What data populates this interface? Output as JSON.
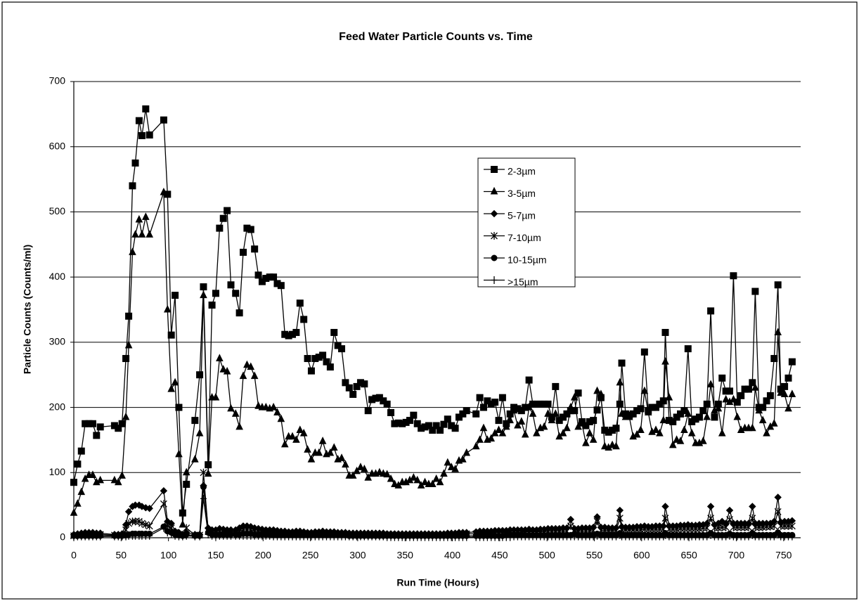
{
  "chart_data": {
    "type": "line",
    "title": "Feed Water Particle Counts vs. Time",
    "x_label": "Run Time (Hours)",
    "y_label": "Particle Counts (Counts/ml)",
    "xlim": [
      0,
      768
    ],
    "xticks": [
      0,
      50,
      100,
      150,
      200,
      250,
      300,
      350,
      400,
      450,
      500,
      550,
      600,
      650,
      700,
      750
    ],
    "ylim": [
      0,
      700
    ],
    "yticks": [
      0,
      100,
      200,
      300,
      400,
      500,
      600,
      700
    ],
    "grid": true,
    "x": [
      0,
      4,
      8,
      12,
      16,
      20,
      24,
      28,
      43,
      47,
      51,
      55,
      58,
      62,
      65,
      69,
      72,
      76,
      80,
      95,
      99,
      103,
      107,
      111,
      115,
      119,
      128,
      133,
      137,
      142,
      146,
      150,
      154,
      158,
      162,
      166,
      171,
      175,
      179,
      183,
      187,
      191,
      195,
      199,
      203,
      207,
      211,
      215,
      219,
      223,
      227,
      231,
      235,
      239,
      243,
      247,
      251,
      255,
      259,
      263,
      267,
      271,
      275,
      279,
      283,
      287,
      291,
      295,
      299,
      303,
      307,
      311,
      315,
      319,
      323,
      327,
      331,
      335,
      339,
      343,
      347,
      351,
      355,
      359,
      363,
      367,
      371,
      375,
      379,
      383,
      387,
      391,
      395,
      399,
      403,
      407,
      411,
      415,
      425,
      429,
      433,
      437,
      441,
      445,
      449,
      453,
      457,
      461,
      465,
      469,
      473,
      477,
      481,
      485,
      489,
      493,
      497,
      501,
      505,
      509,
      513,
      517,
      521,
      525,
      529,
      533,
      537,
      541,
      545,
      549,
      553,
      557,
      561,
      565,
      569,
      573,
      577,
      579,
      583,
      587,
      591,
      595,
      599,
      603,
      607,
      611,
      615,
      619,
      623,
      625,
      629,
      633,
      637,
      641,
      645,
      649,
      653,
      657,
      661,
      665,
      669,
      673,
      677,
      681,
      685,
      689,
      693,
      697,
      701,
      705,
      709,
      713,
      717,
      720,
      724,
      728,
      732,
      736,
      740,
      744,
      747,
      751,
      755,
      759
    ],
    "series": [
      {
        "name": "2-3µm",
        "color": "#000000",
        "marker": "square",
        "values": [
          85,
          113,
          133,
          175,
          175,
          175,
          157,
          170,
          172,
          168,
          175,
          275,
          340,
          540,
          575,
          640,
          617,
          658,
          618,
          641,
          527,
          311,
          372,
          200,
          38,
          82,
          180,
          250,
          385,
          112,
          357,
          375,
          475,
          490,
          502,
          388,
          375,
          345,
          438,
          475,
          473,
          443,
          403,
          393,
          398,
          400,
          400,
          390,
          387,
          312,
          310,
          312,
          315,
          360,
          335,
          275,
          256,
          275,
          277,
          280,
          270,
          262,
          315,
          295,
          290,
          238,
          230,
          220,
          232,
          238,
          236,
          195,
          212,
          214,
          215,
          210,
          205,
          192,
          175,
          176,
          175,
          177,
          180,
          188,
          175,
          168,
          170,
          172,
          165,
          172,
          165,
          174,
          182,
          172,
          168,
          185,
          190,
          195,
          190,
          215,
          200,
          210,
          205,
          208,
          180,
          215,
          175,
          190,
          200,
          198,
          195,
          200,
          242,
          205,
          205,
          205,
          205,
          205,
          185,
          232,
          180,
          185,
          190,
          195,
          195,
          222,
          178,
          172,
          178,
          180,
          196,
          215,
          165,
          162,
          165,
          168,
          205,
          268,
          190,
          188,
          190,
          195,
          198,
          285,
          195,
          200,
          200,
          205,
          210,
          315,
          180,
          178,
          185,
          190,
          195,
          290,
          178,
          182,
          185,
          195,
          205,
          348,
          185,
          205,
          245,
          225,
          225,
          402,
          208,
          218,
          228,
          228,
          238,
          378,
          200,
          200,
          210,
          218,
          275,
          388,
          228,
          232,
          245,
          270
        ]
      },
      {
        "name": "3-5µm",
        "color": "#000000",
        "marker": "triangle",
        "values": [
          38,
          52,
          70,
          90,
          96,
          96,
          85,
          88,
          88,
          85,
          95,
          185,
          295,
          438,
          465,
          488,
          465,
          492,
          465,
          530,
          350,
          228,
          238,
          128,
          20,
          100,
          120,
          160,
          372,
          98,
          215,
          215,
          275,
          258,
          255,
          198,
          190,
          170,
          248,
          265,
          262,
          248,
          202,
          200,
          200,
          198,
          200,
          192,
          182,
          143,
          155,
          155,
          150,
          165,
          160,
          135,
          120,
          130,
          130,
          148,
          128,
          130,
          138,
          120,
          122,
          112,
          95,
          95,
          102,
          108,
          105,
          92,
          98,
          98,
          100,
          98,
          97,
          90,
          82,
          80,
          85,
          85,
          88,
          92,
          88,
          80,
          85,
          82,
          82,
          90,
          85,
          98,
          115,
          108,
          105,
          118,
          120,
          130,
          140,
          150,
          168,
          150,
          152,
          160,
          165,
          160,
          170,
          180,
          195,
          172,
          178,
          158,
          200,
          190,
          160,
          168,
          170,
          190,
          180,
          190,
          155,
          160,
          168,
          200,
          215,
          170,
          175,
          145,
          160,
          150,
          225,
          220,
          140,
          138,
          142,
          140,
          238,
          190,
          185,
          185,
          155,
          158,
          165,
          225,
          192,
          162,
          165,
          160,
          180,
          270,
          215,
          142,
          150,
          148,
          165,
          190,
          160,
          145,
          145,
          148,
          185,
          235,
          195,
          198,
          160,
          212,
          208,
          212,
          185,
          165,
          168,
          168,
          168,
          230,
          195,
          180,
          160,
          170,
          175,
          315,
          222,
          220,
          198,
          220
        ]
      },
      {
        "name": "5-7µm",
        "color": "#000000",
        "marker": "diamond",
        "values": [
          5,
          6,
          7,
          8,
          8,
          8,
          7,
          7,
          5,
          5,
          6,
          20,
          40,
          48,
          50,
          50,
          48,
          46,
          45,
          72,
          25,
          22,
          10,
          8,
          5,
          8,
          5,
          5,
          80,
          15,
          12,
          12,
          14,
          13,
          12,
          12,
          12,
          15,
          18,
          18,
          17,
          15,
          14,
          13,
          12,
          12,
          12,
          11,
          10,
          10,
          9,
          9,
          10,
          10,
          9,
          8,
          8,
          9,
          9,
          10,
          9,
          9,
          9,
          8,
          8,
          8,
          7,
          7,
          7,
          7,
          7,
          7,
          7,
          7,
          7,
          7,
          6,
          6,
          6,
          6,
          6,
          6,
          6,
          6,
          6,
          6,
          6,
          6,
          6,
          6,
          6,
          6,
          7,
          7,
          7,
          8,
          8,
          8,
          9,
          10,
          10,
          10,
          10,
          11,
          11,
          11,
          11,
          12,
          12,
          12,
          12,
          12,
          13,
          12,
          12,
          13,
          13,
          14,
          14,
          14,
          14,
          15,
          15,
          28,
          14,
          14,
          15,
          15,
          15,
          16,
          32,
          16,
          16,
          15,
          15,
          15,
          42,
          17,
          16,
          16,
          16,
          17,
          17,
          18,
          17,
          17,
          18,
          18,
          18,
          48,
          18,
          18,
          18,
          19,
          19,
          20,
          19,
          19,
          20,
          20,
          22,
          48,
          20,
          22,
          25,
          22,
          42,
          22,
          22,
          22,
          22,
          22,
          48,
          22,
          22,
          22,
          22,
          22,
          25,
          62,
          24,
          25,
          25,
          26
        ]
      },
      {
        "name": "7-10µm",
        "color": "#000000",
        "marker": "star",
        "values": [
          3,
          4,
          4,
          5,
          5,
          5,
          5,
          5,
          4,
          4,
          4,
          12,
          22,
          25,
          25,
          25,
          22,
          20,
          18,
          52,
          18,
          15,
          8,
          5,
          4,
          15,
          4,
          4,
          100,
          10,
          8,
          8,
          9,
          9,
          9,
          9,
          9,
          10,
          12,
          12,
          12,
          10,
          10,
          9,
          9,
          9,
          8,
          8,
          7,
          7,
          7,
          7,
          7,
          7,
          7,
          6,
          6,
          6,
          6,
          7,
          6,
          6,
          6,
          6,
          6,
          6,
          5,
          5,
          5,
          5,
          5,
          5,
          5,
          5,
          5,
          5,
          5,
          5,
          4,
          4,
          4,
          4,
          4,
          4,
          4,
          4,
          4,
          4,
          4,
          4,
          4,
          5,
          5,
          5,
          5,
          5,
          6,
          6,
          6,
          7,
          7,
          7,
          7,
          8,
          8,
          8,
          8,
          8,
          8,
          8,
          8,
          9,
          9,
          9,
          9,
          9,
          9,
          10,
          10,
          10,
          10,
          10,
          10,
          18,
          10,
          10,
          10,
          10,
          10,
          11,
          25,
          11,
          11,
          11,
          11,
          11,
          30,
          12,
          12,
          12,
          12,
          12,
          12,
          13,
          13,
          13,
          13,
          13,
          13,
          30,
          13,
          13,
          13,
          14,
          14,
          14,
          14,
          14,
          14,
          15,
          15,
          30,
          15,
          15,
          16,
          16,
          28,
          16,
          16,
          16,
          16,
          16,
          30,
          16,
          16,
          16,
          17,
          17,
          18,
          40,
          18,
          18,
          18,
          18
        ]
      },
      {
        "name": "10-15µm",
        "color": "#000000",
        "marker": "circle",
        "values": [
          3,
          3,
          3,
          3,
          3,
          3,
          3,
          3,
          3,
          3,
          3,
          4,
          5,
          6,
          6,
          6,
          6,
          6,
          6,
          17,
          10,
          8,
          5,
          4,
          3,
          5,
          3,
          3,
          78,
          8,
          5,
          5,
          5,
          5,
          5,
          5,
          5,
          5,
          6,
          6,
          6,
          5,
          5,
          5,
          5,
          5,
          4,
          4,
          4,
          4,
          4,
          4,
          4,
          4,
          4,
          4,
          4,
          4,
          4,
          4,
          4,
          4,
          4,
          4,
          4,
          4,
          3,
          3,
          3,
          3,
          3,
          3,
          3,
          3,
          3,
          3,
          3,
          3,
          3,
          3,
          3,
          3,
          3,
          3,
          3,
          3,
          3,
          3,
          3,
          3,
          3,
          3,
          3,
          3,
          3,
          3,
          3,
          3,
          3,
          3,
          3,
          3,
          3,
          3,
          3,
          3,
          4,
          4,
          4,
          4,
          4,
          4,
          4,
          4,
          4,
          4,
          4,
          4,
          4,
          4,
          4,
          4,
          4,
          4,
          6,
          4,
          4,
          4,
          4,
          4,
          6,
          4,
          4,
          4,
          4,
          4,
          7,
          4,
          4,
          4,
          4,
          4,
          4,
          4,
          4,
          4,
          4,
          4,
          4,
          7,
          4,
          4,
          4,
          4,
          4,
          4,
          4,
          4,
          4,
          4,
          4,
          7,
          4,
          4,
          4,
          4,
          6,
          4,
          4,
          4,
          4,
          4,
          7,
          4,
          4,
          4,
          4,
          4,
          4,
          8,
          4,
          4,
          4,
          4
        ]
      },
      {
        "name": ">15µm",
        "color": "#000000",
        "marker": "plus",
        "values": [
          2,
          2,
          2,
          2,
          2,
          2,
          2,
          2,
          2,
          2,
          2,
          2,
          3,
          3,
          3,
          3,
          3,
          3,
          3,
          15,
          8,
          6,
          3,
          2,
          2,
          3,
          2,
          2,
          60,
          5,
          3,
          3,
          3,
          3,
          3,
          3,
          3,
          3,
          3,
          3,
          3,
          3,
          3,
          3,
          3,
          3,
          2,
          2,
          2,
          2,
          2,
          2,
          2,
          2,
          2,
          2,
          2,
          2,
          2,
          2,
          2,
          2,
          2,
          2,
          2,
          2,
          2,
          2,
          2,
          2,
          2,
          2,
          2,
          2,
          2,
          2,
          1,
          1,
          1,
          1,
          1,
          1,
          1,
          1,
          1,
          1,
          1,
          1,
          1,
          1,
          1,
          1,
          1,
          1,
          1,
          1,
          1,
          1,
          1,
          1,
          1,
          1,
          1,
          1,
          1,
          1,
          1,
          1,
          2,
          2,
          2,
          2,
          2,
          2,
          2,
          2,
          2,
          2,
          2,
          2,
          2,
          2,
          2,
          2,
          2,
          2,
          2,
          2,
          2,
          2,
          3,
          2,
          2,
          2,
          2,
          2,
          4,
          2,
          2,
          2,
          2,
          2,
          2,
          2,
          2,
          2,
          2,
          2,
          2,
          4,
          2,
          2,
          2,
          2,
          2,
          2,
          2,
          2,
          2,
          2,
          2,
          4,
          2,
          2,
          2,
          2,
          3,
          2,
          2,
          2,
          2,
          2,
          4,
          2,
          2,
          2,
          2,
          2,
          2,
          5,
          2,
          2,
          2,
          2
        ]
      }
    ]
  }
}
